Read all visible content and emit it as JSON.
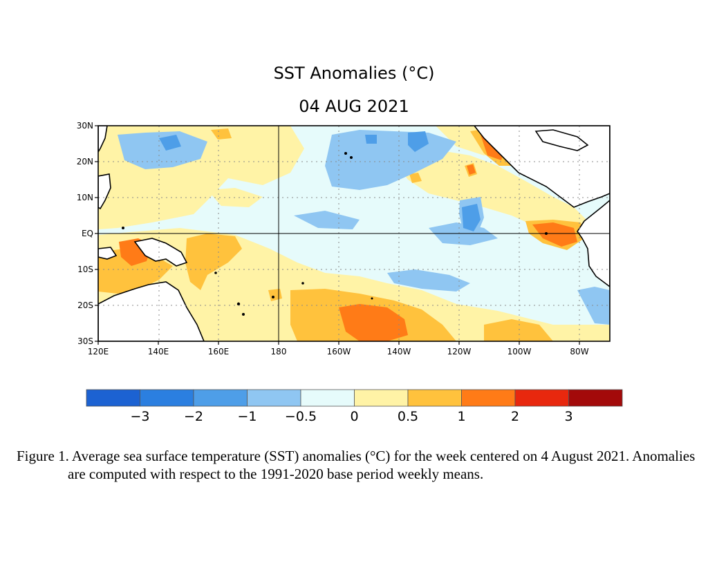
{
  "title": "SST Anomalies (°C)",
  "date": "04 AUG 2021",
  "map": {
    "x_ticks": [
      "120E",
      "140E",
      "160E",
      "180",
      "160W",
      "140W",
      "120W",
      "100W",
      "80W"
    ],
    "y_ticks": [
      "30N",
      "20N",
      "10N",
      "EQ",
      "10S",
      "20S",
      "30S"
    ],
    "lon_range": [
      "120E",
      "70W"
    ],
    "lat_range": [
      "30S",
      "30N"
    ],
    "ocean_color": "#e6fbfb",
    "land_color": "#ffffff"
  },
  "colorbar": {
    "colors": [
      "#1c62d2",
      "#2b7fe0",
      "#4e9ee8",
      "#8fc6f2",
      "#e6fbfb",
      "#fff3a6",
      "#ffc23d",
      "#ff7b17",
      "#e8280e",
      "#a30a0a"
    ],
    "labels": [
      "−3",
      "−2",
      "−1",
      "−0.5",
      "0",
      "0.5",
      "1",
      "2",
      "3"
    ]
  },
  "caption": "Figure 1. Average sea surface temperature (SST) anomalies (°C) for the week centered on 4 August 2021.  Anomalies are computed with respect to the 1991-2020 base period weekly means."
}
